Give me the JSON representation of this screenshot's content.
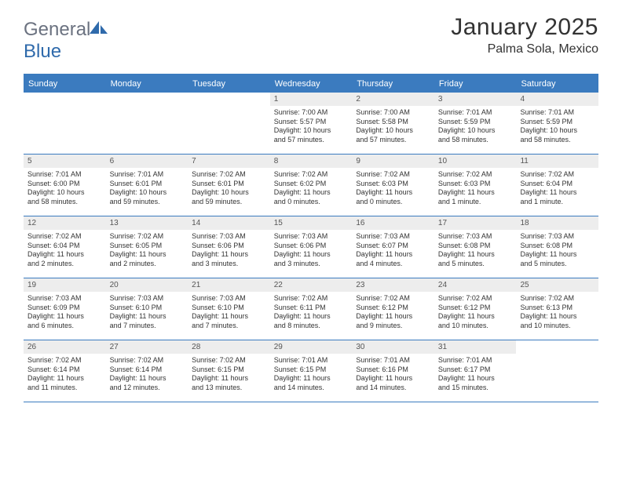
{
  "logo": {
    "general": "General",
    "blue": "Blue"
  },
  "title": "January 2025",
  "location": "Palma Sola, Mexico",
  "header_color": "#3b7bbf",
  "daynum_bg": "#ededed",
  "text_color": "#333333",
  "days_of_week": [
    "Sunday",
    "Monday",
    "Tuesday",
    "Wednesday",
    "Thursday",
    "Friday",
    "Saturday"
  ],
  "weeks": [
    [
      null,
      null,
      null,
      {
        "n": "1",
        "sunrise": "Sunrise: 7:00 AM",
        "sunset": "Sunset: 5:57 PM",
        "day1": "Daylight: 10 hours",
        "day2": "and 57 minutes."
      },
      {
        "n": "2",
        "sunrise": "Sunrise: 7:00 AM",
        "sunset": "Sunset: 5:58 PM",
        "day1": "Daylight: 10 hours",
        "day2": "and 57 minutes."
      },
      {
        "n": "3",
        "sunrise": "Sunrise: 7:01 AM",
        "sunset": "Sunset: 5:59 PM",
        "day1": "Daylight: 10 hours",
        "day2": "and 58 minutes."
      },
      {
        "n": "4",
        "sunrise": "Sunrise: 7:01 AM",
        "sunset": "Sunset: 5:59 PM",
        "day1": "Daylight: 10 hours",
        "day2": "and 58 minutes."
      }
    ],
    [
      {
        "n": "5",
        "sunrise": "Sunrise: 7:01 AM",
        "sunset": "Sunset: 6:00 PM",
        "day1": "Daylight: 10 hours",
        "day2": "and 58 minutes."
      },
      {
        "n": "6",
        "sunrise": "Sunrise: 7:01 AM",
        "sunset": "Sunset: 6:01 PM",
        "day1": "Daylight: 10 hours",
        "day2": "and 59 minutes."
      },
      {
        "n": "7",
        "sunrise": "Sunrise: 7:02 AM",
        "sunset": "Sunset: 6:01 PM",
        "day1": "Daylight: 10 hours",
        "day2": "and 59 minutes."
      },
      {
        "n": "8",
        "sunrise": "Sunrise: 7:02 AM",
        "sunset": "Sunset: 6:02 PM",
        "day1": "Daylight: 11 hours",
        "day2": "and 0 minutes."
      },
      {
        "n": "9",
        "sunrise": "Sunrise: 7:02 AM",
        "sunset": "Sunset: 6:03 PM",
        "day1": "Daylight: 11 hours",
        "day2": "and 0 minutes."
      },
      {
        "n": "10",
        "sunrise": "Sunrise: 7:02 AM",
        "sunset": "Sunset: 6:03 PM",
        "day1": "Daylight: 11 hours",
        "day2": "and 1 minute."
      },
      {
        "n": "11",
        "sunrise": "Sunrise: 7:02 AM",
        "sunset": "Sunset: 6:04 PM",
        "day1": "Daylight: 11 hours",
        "day2": "and 1 minute."
      }
    ],
    [
      {
        "n": "12",
        "sunrise": "Sunrise: 7:02 AM",
        "sunset": "Sunset: 6:04 PM",
        "day1": "Daylight: 11 hours",
        "day2": "and 2 minutes."
      },
      {
        "n": "13",
        "sunrise": "Sunrise: 7:02 AM",
        "sunset": "Sunset: 6:05 PM",
        "day1": "Daylight: 11 hours",
        "day2": "and 2 minutes."
      },
      {
        "n": "14",
        "sunrise": "Sunrise: 7:03 AM",
        "sunset": "Sunset: 6:06 PM",
        "day1": "Daylight: 11 hours",
        "day2": "and 3 minutes."
      },
      {
        "n": "15",
        "sunrise": "Sunrise: 7:03 AM",
        "sunset": "Sunset: 6:06 PM",
        "day1": "Daylight: 11 hours",
        "day2": "and 3 minutes."
      },
      {
        "n": "16",
        "sunrise": "Sunrise: 7:03 AM",
        "sunset": "Sunset: 6:07 PM",
        "day1": "Daylight: 11 hours",
        "day2": "and 4 minutes."
      },
      {
        "n": "17",
        "sunrise": "Sunrise: 7:03 AM",
        "sunset": "Sunset: 6:08 PM",
        "day1": "Daylight: 11 hours",
        "day2": "and 5 minutes."
      },
      {
        "n": "18",
        "sunrise": "Sunrise: 7:03 AM",
        "sunset": "Sunset: 6:08 PM",
        "day1": "Daylight: 11 hours",
        "day2": "and 5 minutes."
      }
    ],
    [
      {
        "n": "19",
        "sunrise": "Sunrise: 7:03 AM",
        "sunset": "Sunset: 6:09 PM",
        "day1": "Daylight: 11 hours",
        "day2": "and 6 minutes."
      },
      {
        "n": "20",
        "sunrise": "Sunrise: 7:03 AM",
        "sunset": "Sunset: 6:10 PM",
        "day1": "Daylight: 11 hours",
        "day2": "and 7 minutes."
      },
      {
        "n": "21",
        "sunrise": "Sunrise: 7:03 AM",
        "sunset": "Sunset: 6:10 PM",
        "day1": "Daylight: 11 hours",
        "day2": "and 7 minutes."
      },
      {
        "n": "22",
        "sunrise": "Sunrise: 7:02 AM",
        "sunset": "Sunset: 6:11 PM",
        "day1": "Daylight: 11 hours",
        "day2": "and 8 minutes."
      },
      {
        "n": "23",
        "sunrise": "Sunrise: 7:02 AM",
        "sunset": "Sunset: 6:12 PM",
        "day1": "Daylight: 11 hours",
        "day2": "and 9 minutes."
      },
      {
        "n": "24",
        "sunrise": "Sunrise: 7:02 AM",
        "sunset": "Sunset: 6:12 PM",
        "day1": "Daylight: 11 hours",
        "day2": "and 10 minutes."
      },
      {
        "n": "25",
        "sunrise": "Sunrise: 7:02 AM",
        "sunset": "Sunset: 6:13 PM",
        "day1": "Daylight: 11 hours",
        "day2": "and 10 minutes."
      }
    ],
    [
      {
        "n": "26",
        "sunrise": "Sunrise: 7:02 AM",
        "sunset": "Sunset: 6:14 PM",
        "day1": "Daylight: 11 hours",
        "day2": "and 11 minutes."
      },
      {
        "n": "27",
        "sunrise": "Sunrise: 7:02 AM",
        "sunset": "Sunset: 6:14 PM",
        "day1": "Daylight: 11 hours",
        "day2": "and 12 minutes."
      },
      {
        "n": "28",
        "sunrise": "Sunrise: 7:02 AM",
        "sunset": "Sunset: 6:15 PM",
        "day1": "Daylight: 11 hours",
        "day2": "and 13 minutes."
      },
      {
        "n": "29",
        "sunrise": "Sunrise: 7:01 AM",
        "sunset": "Sunset: 6:15 PM",
        "day1": "Daylight: 11 hours",
        "day2": "and 14 minutes."
      },
      {
        "n": "30",
        "sunrise": "Sunrise: 7:01 AM",
        "sunset": "Sunset: 6:16 PM",
        "day1": "Daylight: 11 hours",
        "day2": "and 14 minutes."
      },
      {
        "n": "31",
        "sunrise": "Sunrise: 7:01 AM",
        "sunset": "Sunset: 6:17 PM",
        "day1": "Daylight: 11 hours",
        "day2": "and 15 minutes."
      },
      null
    ]
  ]
}
